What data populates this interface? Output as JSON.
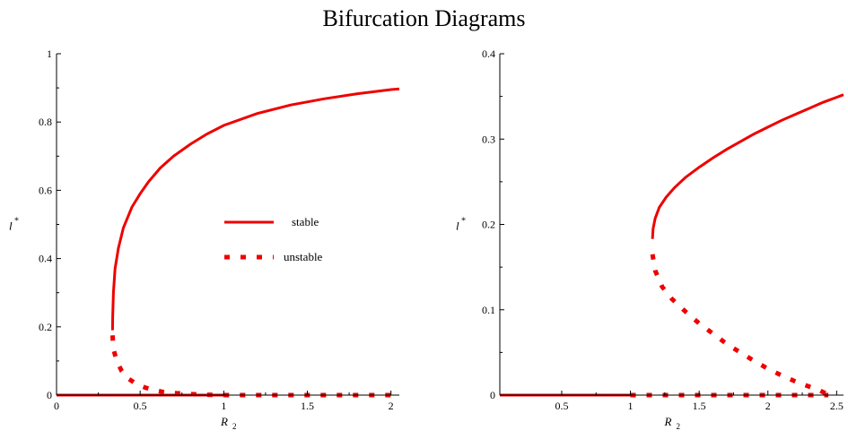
{
  "title": "Bifurcation Diagrams",
  "colors": {
    "curve": "#ee0000",
    "axis": "#000000"
  },
  "chart_data": [
    {
      "type": "line",
      "xlabel": "R",
      "xlabel_sub": "2",
      "ylabel": "l",
      "ylabel_sup": "*",
      "xlim": [
        0,
        2.05
      ],
      "ylim": [
        0,
        1
      ],
      "xticks": [
        0,
        0.5,
        1,
        1.5,
        2
      ],
      "xtick_labels": [
        "0",
        "0.5",
        "1",
        "1.5",
        "2"
      ],
      "yticks": [
        0,
        0.2,
        0.4,
        0.6,
        0.8,
        1
      ],
      "ytick_labels": [
        "0",
        "0.2",
        "0.4",
        "0.6",
        "0.8",
        "1"
      ],
      "legend": {
        "placement": "center",
        "entries": [
          {
            "label": "stable",
            "style": "solid"
          },
          {
            "label": "unstable",
            "style": "dotted"
          }
        ]
      },
      "series": [
        {
          "style": "solid",
          "points": [
            [
              0,
              0
            ],
            [
              1.0,
              0
            ]
          ]
        },
        {
          "style": "dotted",
          "points": [
            [
              1.0,
              0
            ],
            [
              2.0,
              0
            ]
          ]
        },
        {
          "style": "solid",
          "points": [
            [
              0.335,
              0.19
            ],
            [
              0.336,
              0.23
            ],
            [
              0.34,
              0.3
            ],
            [
              0.35,
              0.37
            ],
            [
              0.37,
              0.43
            ],
            [
              0.4,
              0.49
            ],
            [
              0.45,
              0.55
            ],
            [
              0.5,
              0.59
            ],
            [
              0.55,
              0.625
            ],
            [
              0.62,
              0.665
            ],
            [
              0.7,
              0.7
            ],
            [
              0.8,
              0.735
            ],
            [
              0.9,
              0.765
            ],
            [
              1.0,
              0.79
            ],
            [
              1.2,
              0.825
            ],
            [
              1.4,
              0.85
            ],
            [
              1.6,
              0.868
            ],
            [
              1.8,
              0.883
            ],
            [
              2.0,
              0.895
            ],
            [
              2.05,
              0.897
            ]
          ]
        },
        {
          "style": "dotted",
          "points": [
            [
              0.335,
              0.175
            ],
            [
              0.34,
              0.135
            ],
            [
              0.36,
              0.1
            ],
            [
              0.39,
              0.07
            ],
            [
              0.43,
              0.048
            ],
            [
              0.48,
              0.032
            ],
            [
              0.53,
              0.022
            ],
            [
              0.58,
              0.015
            ],
            [
              0.63,
              0.01
            ],
            [
              0.7,
              0.006
            ],
            [
              0.8,
              0.003
            ],
            [
              0.9,
              0.001
            ],
            [
              1.0,
              0.0
            ]
          ]
        }
      ]
    },
    {
      "type": "line",
      "xlabel": "R",
      "xlabel_sub": "2",
      "ylabel": "l",
      "ylabel_sup": "*",
      "xlim": [
        0.05,
        2.55
      ],
      "ylim": [
        0,
        0.4
      ],
      "xticks": [
        0.5,
        1,
        1.5,
        2,
        2.5
      ],
      "xtick_labels": [
        "0.5",
        "1",
        "1.5",
        "2",
        "2.5"
      ],
      "yticks": [
        0,
        0.1,
        0.2,
        0.3,
        0.4
      ],
      "ytick_labels": [
        "0",
        "0.1",
        "0.2",
        "0.3",
        "0.4"
      ],
      "series": [
        {
          "style": "solid",
          "points": [
            [
              0.05,
              0
            ],
            [
              1.0,
              0
            ]
          ]
        },
        {
          "style": "dotted",
          "points": [
            [
              1.0,
              0
            ],
            [
              2.44,
              0
            ]
          ]
        },
        {
          "style": "solid",
          "points": [
            [
              1.16,
              0.183
            ],
            [
              1.165,
              0.195
            ],
            [
              1.18,
              0.207
            ],
            [
              1.21,
              0.22
            ],
            [
              1.26,
              0.232
            ],
            [
              1.32,
              0.243
            ],
            [
              1.4,
              0.255
            ],
            [
              1.5,
              0.267
            ],
            [
              1.6,
              0.278
            ],
            [
              1.7,
              0.288
            ],
            [
              1.8,
              0.297
            ],
            [
              1.9,
              0.306
            ],
            [
              2.0,
              0.314
            ],
            [
              2.1,
              0.322
            ],
            [
              2.2,
              0.329
            ],
            [
              2.3,
              0.336
            ],
            [
              2.4,
              0.343
            ],
            [
              2.5,
              0.349
            ],
            [
              2.55,
              0.352
            ]
          ]
        },
        {
          "style": "dotted",
          "points": [
            [
              1.16,
              0.165
            ],
            [
              1.18,
              0.146
            ],
            [
              1.23,
              0.127
            ],
            [
              1.3,
              0.113
            ],
            [
              1.4,
              0.098
            ],
            [
              1.5,
              0.084
            ],
            [
              1.6,
              0.072
            ],
            [
              1.7,
              0.06
            ],
            [
              1.8,
              0.05
            ],
            [
              1.9,
              0.04
            ],
            [
              2.0,
              0.031
            ],
            [
              2.1,
              0.023
            ],
            [
              2.2,
              0.016
            ],
            [
              2.3,
              0.01
            ],
            [
              2.37,
              0.006
            ],
            [
              2.42,
              0.002
            ],
            [
              2.44,
              0.0
            ]
          ]
        }
      ]
    }
  ]
}
